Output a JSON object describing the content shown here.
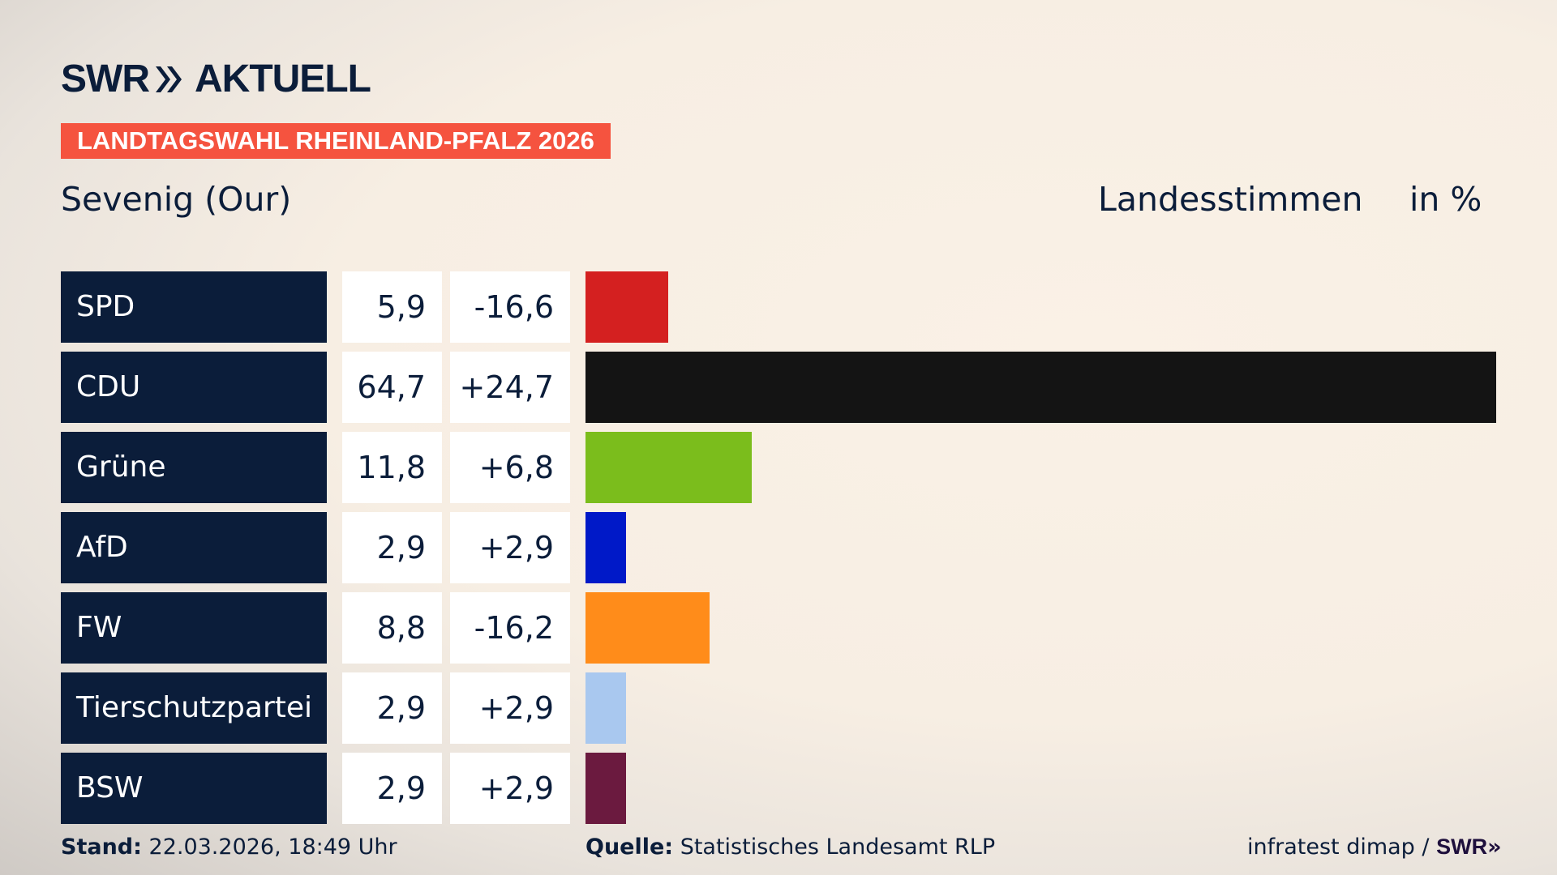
{
  "logo": {
    "brand": "SWR",
    "product": "AKTUELL"
  },
  "banner": "LANDTAGSWAHL RHEINLAND-PFALZ 2026",
  "location": "Sevenig (Our)",
  "vote_type": "Landesstimmen",
  "unit": "in %",
  "chart_data": {
    "type": "bar",
    "orientation": "horizontal",
    "categories": [
      "SPD",
      "CDU",
      "Grüne",
      "AfD",
      "FW",
      "Tierschutzpartei",
      "BSW"
    ],
    "values": [
      5.9,
      64.7,
      11.8,
      2.9,
      8.8,
      2.9,
      2.9
    ],
    "value_labels": [
      "5,9",
      "64,7",
      "11,8",
      "2,9",
      "8,8",
      "2,9",
      "2,9"
    ],
    "diff_labels": [
      "-16,6",
      "+24,7",
      "+6,8",
      "+2,9",
      "-16,2",
      "+2,9",
      "+2,9"
    ],
    "colors": [
      "#d42020",
      "#141414",
      "#7bbd1c",
      "#0019c8",
      "#ff8c1a",
      "#a9c8ef",
      "#6b1a3f"
    ]
  },
  "footer": {
    "stand_label": "Stand:",
    "stand_value": "22.03.2026, 18:49 Uhr",
    "source_label": "Quelle:",
    "source_value": "Statistisches Landesamt RLP",
    "credit": "infratest dimap /",
    "credit_brand": "SWR"
  }
}
